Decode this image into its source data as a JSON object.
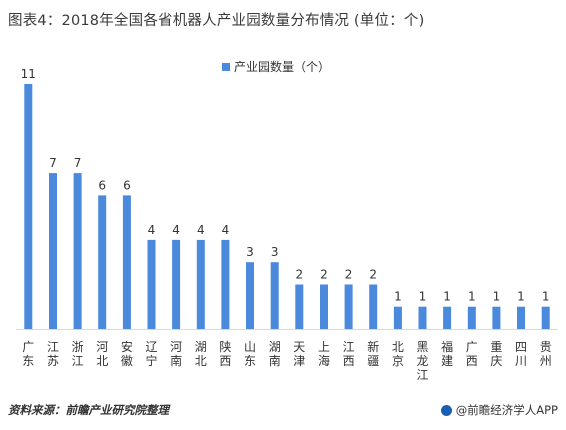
{
  "title": "图表4：2018年全国各省机器人产业园数量分布情况 (单位：个)",
  "source": "资料来源：前瞻产业研究院整理",
  "brand": "@前瞻经济学人APP",
  "colors": {
    "bar": "#4a89dc",
    "text": "#333333"
  },
  "chart_data": {
    "type": "bar",
    "categories": [
      "广东",
      "江苏",
      "浙江",
      "河北",
      "安徽",
      "辽宁",
      "河南",
      "湖北",
      "陕西",
      "山东",
      "湖南",
      "天津",
      "上海",
      "江西",
      "新疆",
      "北京",
      "黑龙江",
      "福建",
      "广西",
      "重庆",
      "四川",
      "贵州"
    ],
    "series": [
      {
        "name": "产业园数量（个）",
        "values": [
          11,
          7,
          7,
          6,
          6,
          4,
          4,
          4,
          4,
          3,
          3,
          2,
          2,
          2,
          2,
          1,
          1,
          1,
          1,
          1,
          1,
          1
        ]
      }
    ],
    "ylim": [
      0,
      11
    ],
    "legend": "top-center",
    "grid": false
  }
}
